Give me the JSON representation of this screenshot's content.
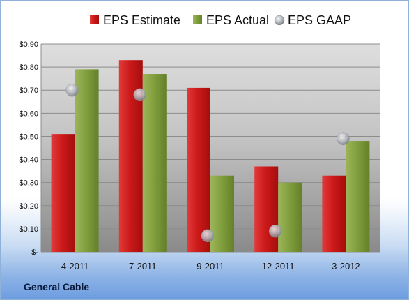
{
  "company": "General Cable",
  "chart_data": {
    "type": "bar",
    "categories": [
      "4-2011",
      "7-2011",
      "9-2011",
      "12-2011",
      "3-2012"
    ],
    "series": [
      {
        "name": "EPS Estimate",
        "type": "bar",
        "color": "#cc1a1a",
        "values": [
          0.51,
          0.83,
          0.71,
          0.37,
          0.33
        ]
      },
      {
        "name": "EPS Actual",
        "type": "bar",
        "color": "#7f9a3a",
        "values": [
          0.79,
          0.77,
          0.33,
          0.3,
          0.48
        ]
      },
      {
        "name": "EPS GAAP",
        "type": "scatter",
        "color": "#b8bcc4",
        "values": [
          0.7,
          0.68,
          0.07,
          0.09,
          0.49
        ]
      }
    ],
    "ylim": [
      0,
      0.9
    ],
    "yticks": [
      0,
      0.1,
      0.2,
      0.3,
      0.4,
      0.5,
      0.6,
      0.7,
      0.8,
      0.9
    ],
    "ytick_labels": [
      "$-",
      "$0.10",
      "$0.20",
      "$0.30",
      "$0.40",
      "$0.50",
      "$0.60",
      "$0.70",
      "$0.80",
      "$0.90"
    ],
    "title": "",
    "xlabel": "",
    "ylabel": "",
    "grid": true,
    "legend": "top"
  }
}
